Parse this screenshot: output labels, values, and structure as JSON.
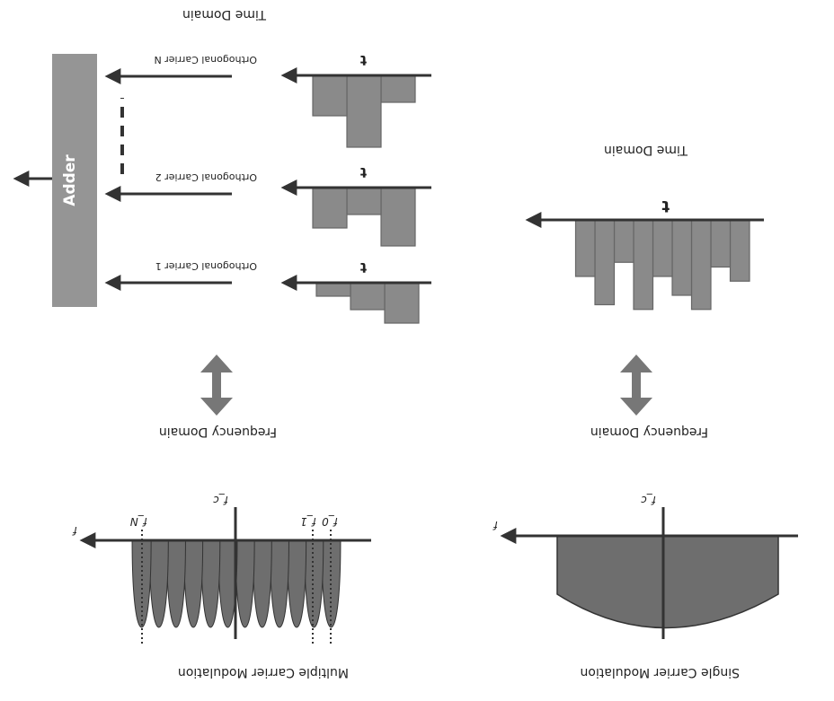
{
  "orientation": "rotated-180",
  "single_carrier": {
    "title": "Single Carrier Modulation",
    "freq_axis_label": "f",
    "center_freq_label": "f_c",
    "freq_domain_label": "Frequency Domain",
    "time_domain_label": "Time Domain",
    "time_axis_label": "t",
    "time_bars": [
      0.65,
      0.5,
      0.95,
      0.8,
      0.6,
      0.95,
      0.45,
      0.9,
      0.6
    ]
  },
  "multi_carrier": {
    "title": "Multiple Carrier Modulation",
    "freq_axis_label": "f",
    "center_freq_label": "f_c",
    "f0_label": "f_0",
    "f1_label": "f_1",
    "fn_label": "f_N",
    "subcarrier_count": 12,
    "freq_domain_label": "Frequency Domain",
    "time_domain_label": "Time Domain",
    "adder_label": "Adder",
    "carriers": [
      {
        "name": "Orthogonal Carrier 1",
        "axis_label": "t",
        "bars": [
          0.45,
          0.3,
          0.15
        ]
      },
      {
        "name": "Orthogonal Carrier 2",
        "axis_label": "t",
        "bars": [
          0.65,
          0.3,
          0.45
        ]
      },
      {
        "name": "Orthogonal Carrier N",
        "axis_label": "t",
        "bars": [
          0.3,
          0.8,
          0.45
        ]
      }
    ]
  },
  "colors": {
    "bar_fill": "#8a8a8a",
    "bar_stroke": "#666666",
    "axis": "#333333",
    "freq_fill": "#6e6e6e",
    "adder_fill": "#959595",
    "arrow_fill": "#777777"
  }
}
